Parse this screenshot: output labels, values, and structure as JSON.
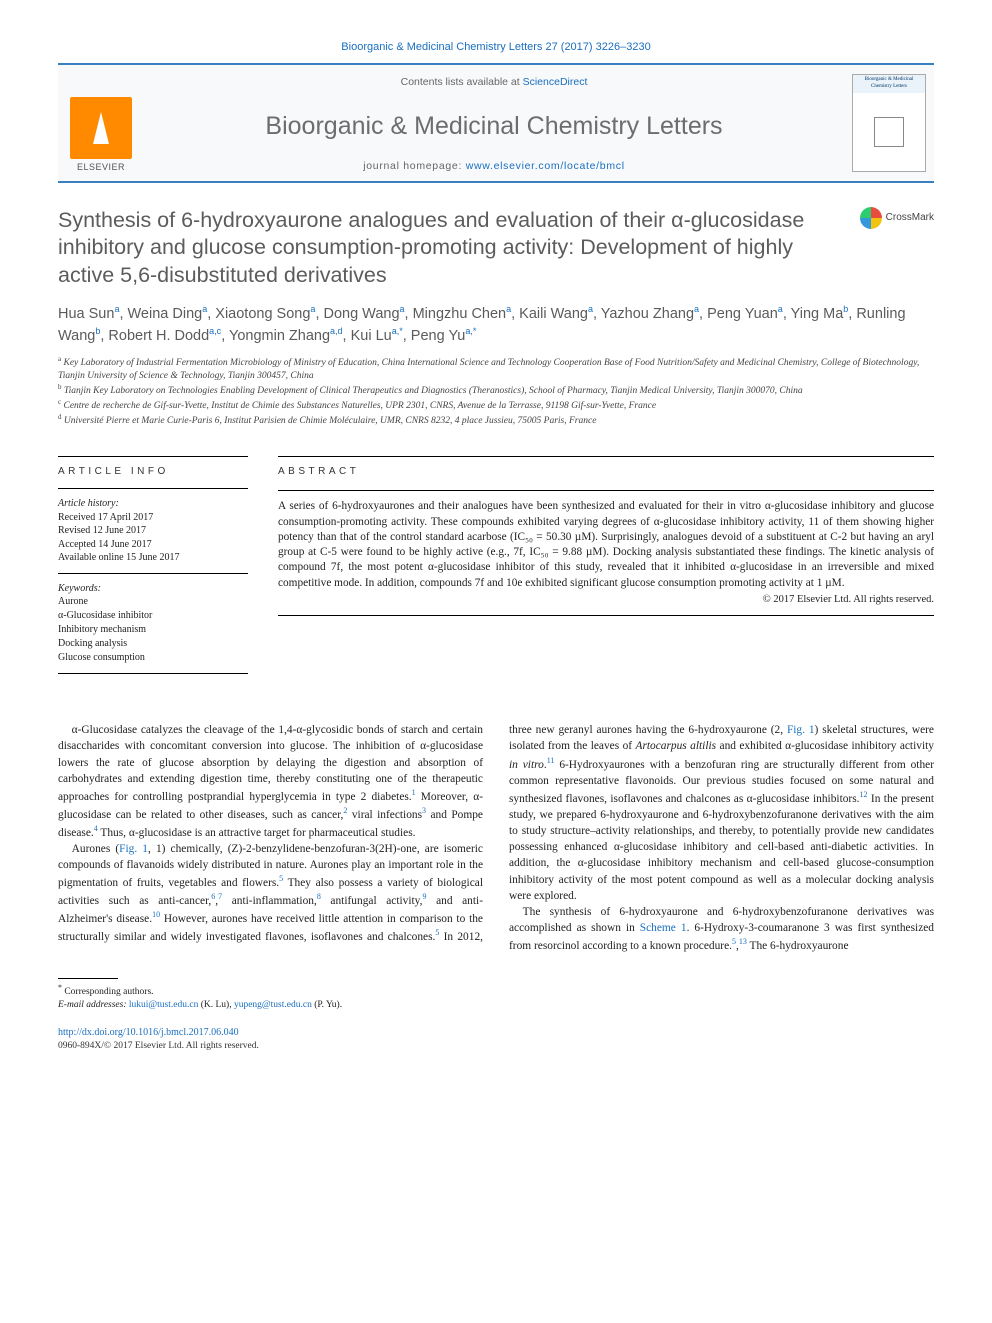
{
  "top_reference": "Bioorganic & Medicinal Chemistry Letters 27 (2017) 3226–3230",
  "banner": {
    "publisher": "ELSEVIER",
    "contents_prefix": "Contents lists available at ",
    "contents_link": "ScienceDirect",
    "journal_name": "Bioorganic & Medicinal Chemistry Letters",
    "homepage_prefix": "journal homepage: ",
    "homepage_url": "www.elsevier.com/locate/bmcl",
    "cover_title": "Bioorganic & Medicinal Chemistry Letters"
  },
  "crossmark_label": "CrossMark",
  "title": "Synthesis of 6-hydroxyaurone analogues and evaluation of their α-glucosidase inhibitory and glucose consumption-promoting activity: Development of highly active 5,6-disubstituted derivatives",
  "authors_html": "Hua Sun<sup>a</sup>, Weina Ding<sup>a</sup>, Xiaotong Song<sup>a</sup>, Dong Wang<sup>a</sup>, Mingzhu Chen<sup>a</sup>, Kaili Wang<sup>a</sup>, Yazhou Zhang<sup>a</sup>, Peng Yuan<sup>a</sup>, Ying Ma<sup>b</sup>, Runling Wang<sup>b</sup>, Robert H. Dodd<sup>a,c</sup>, Yongmin Zhang<sup>a,d</sup>, Kui Lu<sup>a,<span class=\"star\">*</span></sup>, Peng Yu<sup>a,<span class=\"star\">*</span></sup>",
  "affiliations": {
    "a": "Key Laboratory of Industrial Fermentation Microbiology of Ministry of Education, China International Science and Technology Cooperation Base of Food Nutrition/Safety and Medicinal Chemistry, College of Biotechnology, Tianjin University of Science & Technology, Tianjin 300457, China",
    "b": "Tianjin Key Laboratory on Technologies Enabling Development of Clinical Therapeutics and Diagnostics (Theranostics), School of Pharmacy, Tianjin Medical University, Tianjin 300070, China",
    "c": "Centre de recherche de Gif-sur-Yvette, Institut de Chimie des Substances Naturelles, UPR 2301, CNRS, Avenue de la Terrasse, 91198 Gif-sur-Yvette, France",
    "d": "Université Pierre et Marie Curie-Paris 6, Institut Parisien de Chimie Moléculaire, UMR, CNRS 8232, 4 place Jussieu, 75005 Paris, France"
  },
  "article_info": {
    "heading": "ARTICLE INFO",
    "history_label": "Article history:",
    "history": [
      "Received 17 April 2017",
      "Revised 12 June 2017",
      "Accepted 14 June 2017",
      "Available online 15 June 2017"
    ],
    "keywords_label": "Keywords:",
    "keywords": [
      "Aurone",
      "α-Glucosidase inhibitor",
      "Inhibitory mechanism",
      "Docking analysis",
      "Glucose consumption"
    ]
  },
  "abstract": {
    "heading": "ABSTRACT",
    "text": "A series of 6-hydroxyaurones and their analogues have been synthesized and evaluated for their in vitro α-glucosidase inhibitory and glucose consumption-promoting activity. These compounds exhibited varying degrees of α-glucosidase inhibitory activity, 11 of them showing higher potency than that of the control standard acarbose (IC₅₀ = 50.30 µM). Surprisingly, analogues devoid of a substituent at C-2 but having an aryl group at C-5 were found to be highly active (e.g., 7f, IC₅₀ = 9.88 µM). Docking analysis substantiated these findings. The kinetic analysis of compound 7f, the most potent α-glucosidase inhibitor of this study, revealed that it inhibited α-glucosidase in an irreversible and mixed competitive mode. In addition, compounds 7f and 10e exhibited significant glucose consumption promoting activity at 1 µM.",
    "copyright": "© 2017 Elsevier Ltd. All rights reserved."
  },
  "body": {
    "p1": "α-Glucosidase catalyzes the cleavage of the 1,4-α-glycosidic bonds of starch and certain disaccharides with concomitant conversion into glucose. The inhibition of α-glucosidase lowers the rate of glucose absorption by delaying the digestion and absorption of carbohydrates and extending digestion time, thereby constituting one of the therapeutic approaches for controlling postprandial hyperglycemia in type 2 diabetes.¹ Moreover, α-glucosidase can be related to other diseases, such as cancer,² viral infections³ and Pompe disease.⁴ Thus, α-glucosidase is an attractive target for pharmaceutical studies.",
    "p2": "Aurones (Fig. 1, 1) chemically, (Z)-2-benzylidene-benzofuran-3(2H)-one, are isomeric compounds of flavanoids widely distributed in nature. Aurones play an important role in the pigmentation of fruits, vegetables and flowers.⁵ They also possess a variety of biological activities such as anti-cancer,⁶·⁷ anti-inflammation,⁸ antifungal activity,⁹ and anti-Alzheimer's disease.¹⁰ However, aurones have received little attention in comparison to the structurally similar and widely investigated flavones, isoflavones and chalcones.⁵ In 2012, three new geranyl aurones having the 6-hydroxyaurone (2, Fig. 1) skeletal structures, were isolated from the leaves of Artocarpus altilis and exhibited α-glucosidase inhibitory activity in vitro.¹¹ 6-Hydroxyaurones with a benzofuran ring are structurally different from other common representative flavonoids. Our previous studies focused on some natural and synthesized flavones, isoflavones and chalcones as α-glucosidase inhibitors.¹² In the present study, we prepared 6-hydroxyaurone and 6-hydroxybenzofuranone derivatives with the aim to study structure–activity relationships, and thereby, to potentially provide new candidates possessing enhanced α-glucosidase inhibitory and cell-based anti-diabetic activities. In addition, the α-glucosidase inhibitory mechanism and cell-based glucose-consumption inhibitory activity of the most potent compound as well as a molecular docking analysis were explored.",
    "p3": "The synthesis of 6-hydroxyaurone and 6-hydroxybenzofuranone derivatives was accomplished as shown in Scheme 1. 6-Hydroxy-3-coumaranone 3 was first synthesized from resorcinol according to a known procedure.⁵·¹³ The 6-hydroxyaurone"
  },
  "footer": {
    "corresponding": "Corresponding authors.",
    "email_label": "E-mail addresses:",
    "email1": "lukui@tust.edu.cn",
    "email1_who": "(K. Lu),",
    "email2": "yupeng@tust.edu.cn",
    "email2_who": "(P. Yu).",
    "doi": "http://dx.doi.org/10.1016/j.bmcl.2017.06.040",
    "issn": "0960-894X/© 2017 Elsevier Ltd. All rights reserved."
  },
  "colors": {
    "link": "#1a6fbf",
    "banner_border": "#3a7fbf",
    "title_gray": "#5c5c5c",
    "elsevier_orange": "#ff8a00"
  }
}
